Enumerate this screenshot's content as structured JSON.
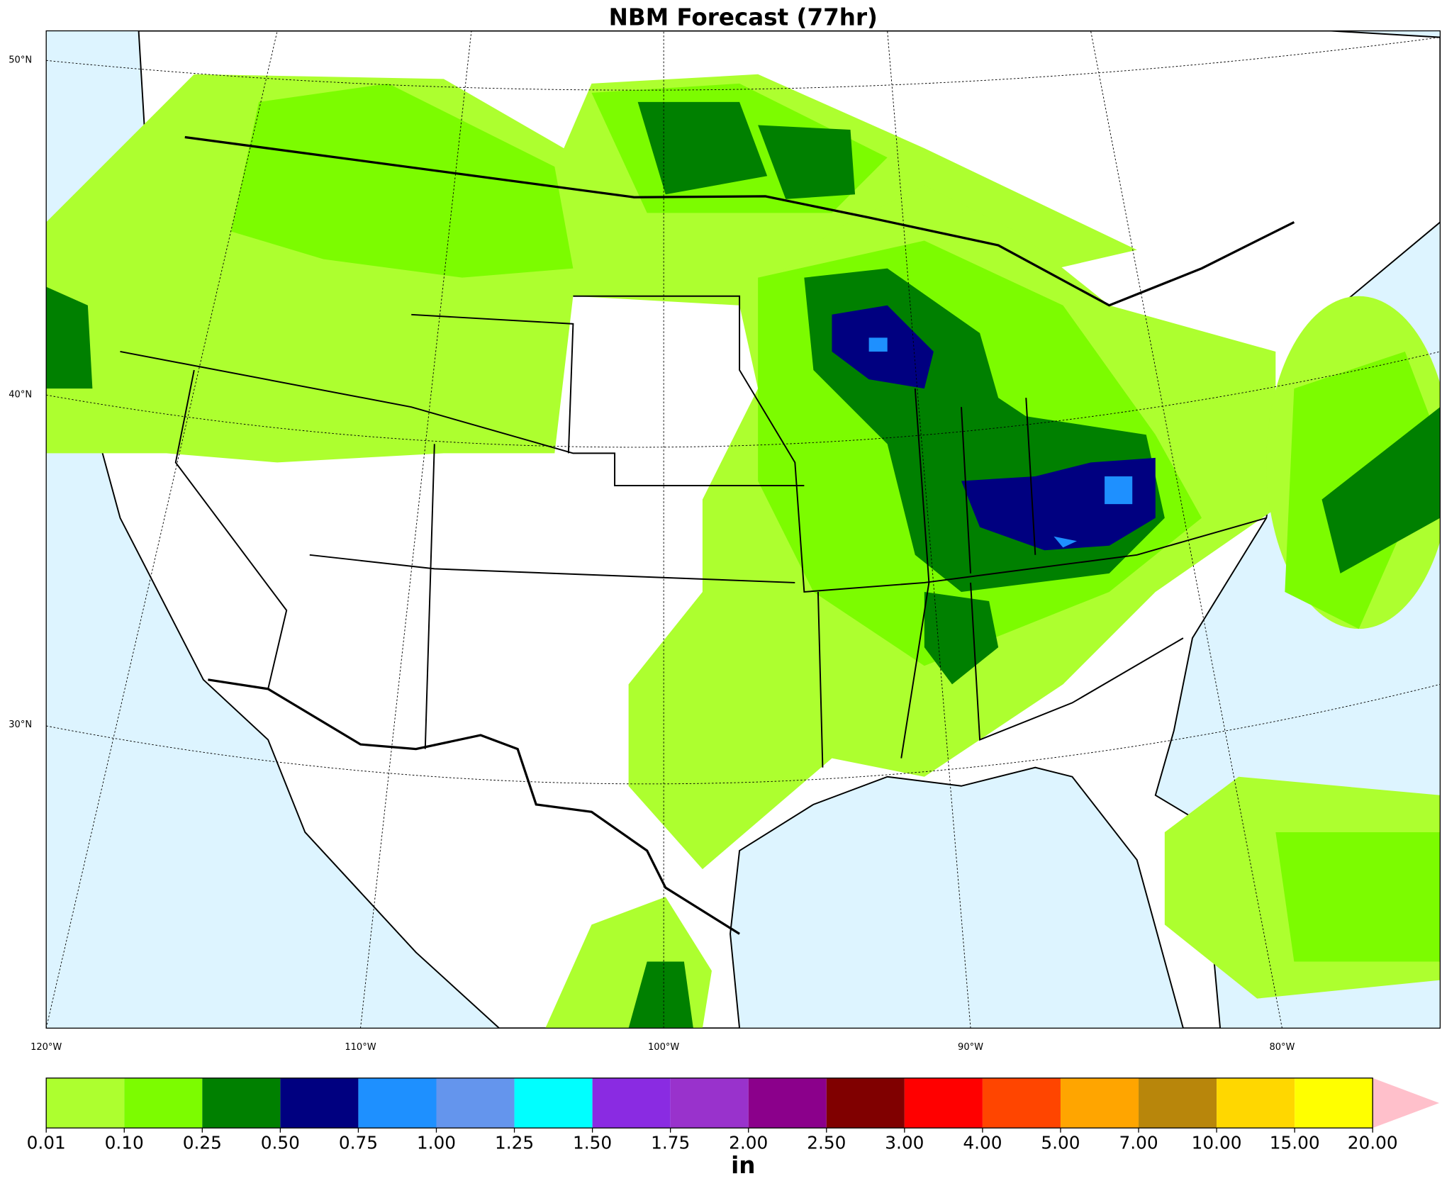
{
  "title": "NBM Forecast (77hr)",
  "map": {
    "lat_labels": [
      "50°N",
      "40°N",
      "30°N"
    ],
    "lon_labels": [
      "120°W",
      "110°W",
      "100°W",
      "90°W",
      "80°W"
    ]
  },
  "colorbar": {
    "ticks": [
      0.01,
      {
        "value": 0.1,
        "label": "0.10"
      },
      0.25,
      {
        "value": 0.5,
        "label": "0.50"
      },
      0.75,
      {
        "value": 1,
        "label": "1.00"
      },
      1.25,
      {
        "value": 1.5,
        "label": "1.50"
      },
      1.75,
      {
        "value": 2,
        "label": "2.00"
      },
      {
        "value": 2.5,
        "label": "2.50"
      },
      {
        "value": 3,
        "label": "3.00"
      },
      {
        "value": 4,
        "label": "4.00"
      },
      {
        "value": 5,
        "label": "5.00"
      },
      {
        "value": 7,
        "label": "7.00"
      },
      {
        "value": 10,
        "label": "10.00"
      },
      {
        "value": 15,
        "label": "15.00"
      },
      {
        "value": 20,
        "label": "20.00"
      }
    ],
    "colors": [
      "#adff2f",
      "#7cfc00",
      "#008000",
      "#000080",
      "#1e90ff",
      "#6495ed",
      "#00ffff",
      "#8a2be2",
      "#9932cc",
      "#8b008b",
      "#800000",
      "#ff0000",
      "#ff4500",
      "#ffa500",
      "#b8860b",
      "#ffd700",
      "#ffff00"
    ],
    "extend_color": "#ffc0cb",
    "unit": "in"
  }
}
